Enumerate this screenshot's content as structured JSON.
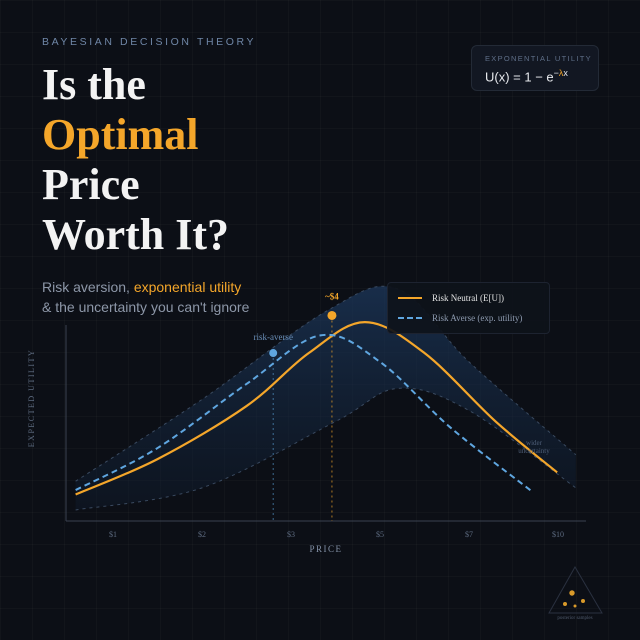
{
  "kicker": "BAYESIAN DECISION THEORY",
  "title": {
    "line1": "Is the",
    "line2": "Optimal",
    "line3": "Price",
    "line4": "Worth It?"
  },
  "subtitle": {
    "part1": "Risk aversion, ",
    "highlight": "exponential utility",
    "line2": "& the uncertainty you can't ignore"
  },
  "formula": {
    "label": "EXPONENTIAL UTILITY",
    "lhs": "U(x) = 1 − e",
    "exp_minus": "−",
    "exp_lambda": "λ",
    "exp_x": "x"
  },
  "colors": {
    "accent": "#f4a62a",
    "averse": "#5fa6e0",
    "band": "#1b3556"
  },
  "chart_data": {
    "type": "line",
    "xlabel": "PRICE",
    "ylabel": "EXPECTED UTILITY",
    "categories": [
      "$1",
      "$2",
      "$3",
      "$5",
      "$7",
      "$10"
    ],
    "ylim": [
      0,
      1
    ],
    "legend": "top-right",
    "series": [
      {
        "name": "Risk Neutral (E[U])",
        "style": "solid",
        "points": [
          [
            -0.42,
            0.12
          ],
          [
            0.5,
            0.28
          ],
          [
            1.5,
            0.52
          ],
          [
            2.2,
            0.76
          ],
          [
            2.83,
            0.9
          ],
          [
            3.5,
            0.76
          ],
          [
            4.3,
            0.45
          ],
          [
            4.99,
            0.22
          ]
        ]
      },
      {
        "name": "Risk Averse (exp. utility)",
        "style": "dashed",
        "points": [
          [
            -0.42,
            0.14
          ],
          [
            0.5,
            0.33
          ],
          [
            1.5,
            0.62
          ],
          [
            2.33,
            0.84
          ],
          [
            3.0,
            0.72
          ],
          [
            3.8,
            0.42
          ],
          [
            4.72,
            0.13
          ]
        ]
      }
    ],
    "band_upper": [
      [
        -0.42,
        0.18
      ],
      [
        1,
        0.55
      ],
      [
        2.4,
        0.95
      ],
      [
        3.2,
        1.05
      ],
      [
        4,
        0.72
      ],
      [
        5.2,
        0.3
      ]
    ],
    "band_lower": [
      [
        -0.42,
        0.05
      ],
      [
        1,
        0.15
      ],
      [
        2.5,
        0.45
      ],
      [
        3.2,
        0.6
      ],
      [
        4,
        0.5
      ],
      [
        5.2,
        0.15
      ]
    ],
    "annotations": [
      {
        "text": "~$4",
        "x": 2.46,
        "y": 0.93
      },
      {
        "text": "risk-averse",
        "x": 1.8,
        "y": 0.76
      },
      {
        "text": "wider",
        "text2": "uncertainty",
        "x": 4.8,
        "y": 0.35
      }
    ]
  },
  "badge": {
    "text": "posterior samples"
  }
}
